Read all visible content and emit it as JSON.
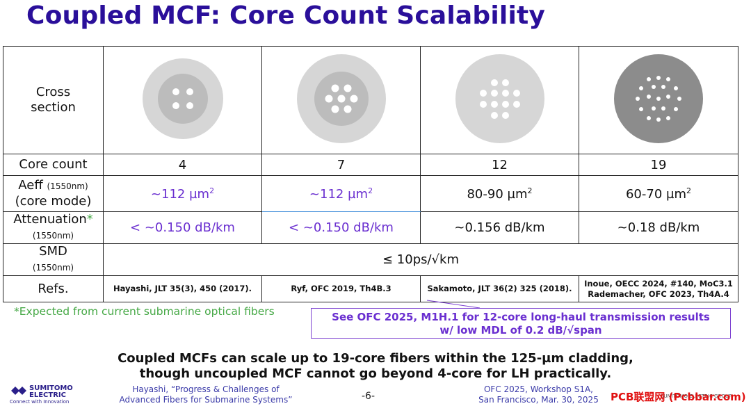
{
  "title": "Coupled MCF: Core Count Scalability",
  "table": {
    "cross_label_1": "Cross",
    "cross_label_2": "section",
    "core_count_label": "Core count",
    "aeff_label": "Aeff",
    "aeff_sub": "(1550nm)",
    "aeff_label_2": "(core mode)",
    "atten_label": "Attenuation",
    "atten_star": "*",
    "atten_sub": "(1550nm)",
    "smd_label": "SMD",
    "smd_sub": "(1550nm)",
    "refs_label": "Refs.",
    "columns": [
      {
        "cores": "4",
        "aeff": "~112 µm",
        "aeff_sup": "2",
        "atten": "< ~0.150 dB/km",
        "ref": "Hayashi, JLT 35(3), 450 (2017).",
        "ref2": "",
        "highlight": "purple"
      },
      {
        "cores": "7",
        "aeff": "~112 µm",
        "aeff_sup": "2",
        "atten": "< ~0.150 dB/km",
        "ref": "Ryf, OFC 2019, Th4B.3",
        "ref2": "",
        "highlight": "purple"
      },
      {
        "cores": "12",
        "aeff": "80-90 µm",
        "aeff_sup": "2",
        "atten": "~0.156 dB/km",
        "ref": "Sakamoto, JLT 36(2) 325 (2018).",
        "ref2": "",
        "highlight": "black"
      },
      {
        "cores": "19",
        "aeff": "60-70 µm",
        "aeff_sup": "2",
        "atten": "~0.18 dB/km",
        "ref": "Inoue, OECC 2024, #140, MoC3.1",
        "ref2": "Rademacher, OFC 2023, Th4A.4",
        "highlight": "black"
      }
    ],
    "smd_value": "≤ 10ps/√km"
  },
  "note": "*Expected from current submarine optical fibers",
  "callout_1": "See OFC 2025, M1H.1 for 12-core long-haul transmission results",
  "callout_2": "w/ low MDL of 0.2 dB/√span",
  "conclusion_1": "Coupled MCFs can scale up to 19-core fibers within the 125-µm cladding,",
  "conclusion_2": "though uncoupled MCF cannot go beyond 4-core for LH practically.",
  "footer_left_1": "Hayashi, “Progress & Challenges of",
  "footer_left_2": "Advanced Fibers for Submarine Systems”",
  "page_number": "-6-",
  "footer_right_1": "OFC 2025, Workshop S1A,",
  "footer_right_2": "San Francisco, Mar. 30, 2025",
  "logo_name_1": "SUMITOMO",
  "logo_name_2": "ELECTRIC",
  "logo_tag": "Connect with Innovation",
  "watermark": "PCB联盟网 (Pcbbar.com)",
  "watermark_small": "SUMITOMO ELECTRIC GROUP",
  "colors": {
    "title": "#2a0f9a",
    "purple": "#6a2fd0",
    "green": "#45a845",
    "cladding": "#d6d6d6",
    "cladding_dark": "#8c8c8c"
  }
}
